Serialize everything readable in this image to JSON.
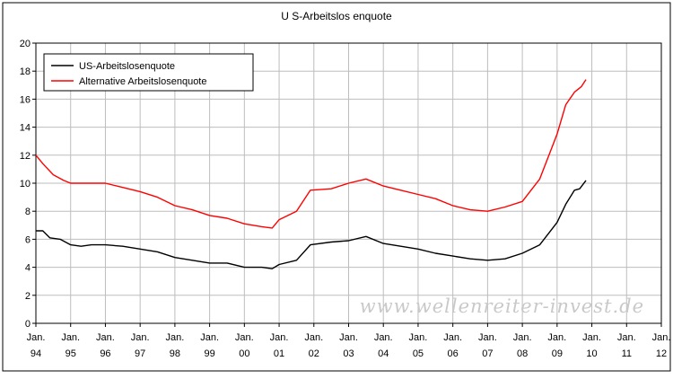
{
  "chart_data": {
    "type": "line",
    "title": "U S-Arbeitslos enquote",
    "xlabel": "",
    "ylabel": "",
    "ylim": [
      0,
      20
    ],
    "yticks": [
      "0",
      "2",
      "4",
      "6",
      "8",
      "10",
      "12",
      "14",
      "16",
      "18",
      "20"
    ],
    "xlim": [
      1994,
      2012
    ],
    "xticks": [
      {
        "month": "Jan.",
        "year": "94"
      },
      {
        "month": "Jan.",
        "year": "95"
      },
      {
        "month": "Jan.",
        "year": "96"
      },
      {
        "month": "Jan.",
        "year": "97"
      },
      {
        "month": "Jan.",
        "year": "98"
      },
      {
        "month": "Jan.",
        "year": "99"
      },
      {
        "month": "Jan.",
        "year": "00"
      },
      {
        "month": "Jan.",
        "year": "01"
      },
      {
        "month": "Jan.",
        "year": "02"
      },
      {
        "month": "Jan.",
        "year": "03"
      },
      {
        "month": "Jan.",
        "year": "04"
      },
      {
        "month": "Jan.",
        "year": "05"
      },
      {
        "month": "Jan.",
        "year": "06"
      },
      {
        "month": "Jan.",
        "year": "07"
      },
      {
        "month": "Jan.",
        "year": "08"
      },
      {
        "month": "Jan.",
        "year": "09"
      },
      {
        "month": "Jan.",
        "year": "10"
      },
      {
        "month": "Jan.",
        "year": "11"
      },
      {
        "month": "Jan.",
        "year": "12"
      }
    ],
    "grid": true,
    "legend_position": "top-left",
    "series": [
      {
        "name": "US-Arbeitslosenquote",
        "color": "#000000",
        "points": [
          [
            1994.0,
            6.6
          ],
          [
            1994.2,
            6.6
          ],
          [
            1994.4,
            6.1
          ],
          [
            1994.7,
            6.0
          ],
          [
            1995.0,
            5.6
          ],
          [
            1995.3,
            5.5
          ],
          [
            1995.6,
            5.6
          ],
          [
            1996.0,
            5.6
          ],
          [
            1996.5,
            5.5
          ],
          [
            1997.0,
            5.3
          ],
          [
            1997.5,
            5.1
          ],
          [
            1998.0,
            4.7
          ],
          [
            1998.5,
            4.5
          ],
          [
            1999.0,
            4.3
          ],
          [
            1999.5,
            4.3
          ],
          [
            2000.0,
            4.0
          ],
          [
            2000.5,
            4.0
          ],
          [
            2000.8,
            3.9
          ],
          [
            2001.0,
            4.2
          ],
          [
            2001.5,
            4.5
          ],
          [
            2001.9,
            5.6
          ],
          [
            2002.5,
            5.8
          ],
          [
            2003.0,
            5.9
          ],
          [
            2003.5,
            6.2
          ],
          [
            2004.0,
            5.7
          ],
          [
            2004.5,
            5.5
          ],
          [
            2005.0,
            5.3
          ],
          [
            2005.5,
            5.0
          ],
          [
            2006.0,
            4.8
          ],
          [
            2006.5,
            4.6
          ],
          [
            2007.0,
            4.5
          ],
          [
            2007.5,
            4.6
          ],
          [
            2008.0,
            5.0
          ],
          [
            2008.5,
            5.6
          ],
          [
            2009.0,
            7.2
          ],
          [
            2009.25,
            8.5
          ],
          [
            2009.5,
            9.5
          ],
          [
            2009.65,
            9.6
          ],
          [
            2009.83,
            10.2
          ]
        ]
      },
      {
        "name": "Alternative Arbeitslosenquote",
        "color": "#ff0000",
        "points": [
          [
            1994.0,
            12.0
          ],
          [
            1994.2,
            11.4
          ],
          [
            1994.5,
            10.6
          ],
          [
            1994.8,
            10.2
          ],
          [
            1995.0,
            10.0
          ],
          [
            1995.5,
            10.0
          ],
          [
            1996.0,
            10.0
          ],
          [
            1996.5,
            9.7
          ],
          [
            1997.0,
            9.4
          ],
          [
            1997.5,
            9.0
          ],
          [
            1998.0,
            8.4
          ],
          [
            1998.5,
            8.1
          ],
          [
            1999.0,
            7.7
          ],
          [
            1999.5,
            7.5
          ],
          [
            2000.0,
            7.1
          ],
          [
            2000.5,
            6.9
          ],
          [
            2000.8,
            6.8
          ],
          [
            2001.0,
            7.4
          ],
          [
            2001.5,
            8.0
          ],
          [
            2001.9,
            9.5
          ],
          [
            2002.5,
            9.6
          ],
          [
            2003.0,
            10.0
          ],
          [
            2003.5,
            10.3
          ],
          [
            2004.0,
            9.8
          ],
          [
            2004.5,
            9.5
          ],
          [
            2005.0,
            9.2
          ],
          [
            2005.5,
            8.9
          ],
          [
            2006.0,
            8.4
          ],
          [
            2006.5,
            8.1
          ],
          [
            2007.0,
            8.0
          ],
          [
            2007.5,
            8.3
          ],
          [
            2008.0,
            8.7
          ],
          [
            2008.5,
            10.3
          ],
          [
            2009.0,
            13.5
          ],
          [
            2009.25,
            15.6
          ],
          [
            2009.5,
            16.5
          ],
          [
            2009.7,
            16.9
          ],
          [
            2009.83,
            17.4
          ]
        ]
      }
    ],
    "watermark": "www.wellenreiter-invest.de"
  }
}
